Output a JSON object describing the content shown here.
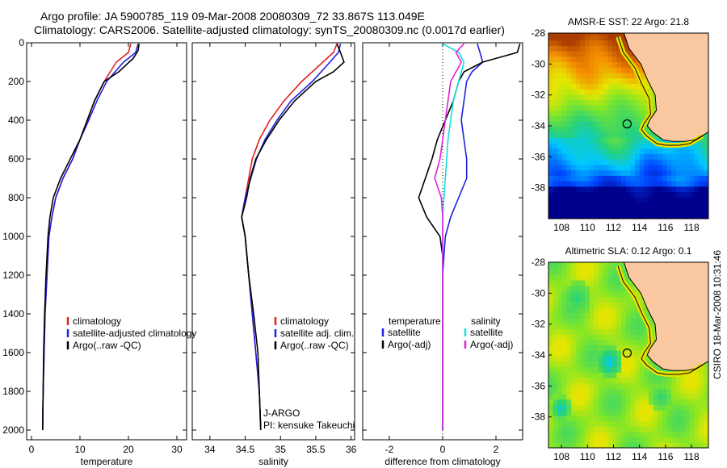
{
  "header": {
    "line1": "Argo profile: JA 5900785_119 09-Mar-2008 20080309_72 33.867S 113.049E",
    "line2": "Climatology: CARS2006. Satellite-adjusted climatology: synTS_20080309.nc (0.0017d earlier)"
  },
  "stamp": "CSIRO 18-Mar-2008 10:31:46",
  "colors": {
    "red": "#e02020",
    "blue": "#2020e0",
    "black": "#000000",
    "cyan": "#10e0e0",
    "magenta": "#e020e0"
  },
  "chart_data": [
    {
      "type": "line",
      "xlabel": "temperature",
      "xlim": [
        -1,
        32
      ],
      "ylim": [
        0,
        2050
      ],
      "y_reversed": true,
      "x_ticks": [
        0,
        10,
        20,
        30
      ],
      "y_ticks": [
        0,
        200,
        400,
        600,
        800,
        1000,
        1200,
        1400,
        1600,
        1800,
        2000
      ],
      "legend_entries": [
        "climatology",
        "satellite-adjusted climatology",
        "Argo(..raw -QC)"
      ],
      "series": [
        {
          "name": "climatology",
          "color": "red",
          "x": [
            20.5,
            20.0,
            17.5,
            15.0,
            13.0,
            11.5,
            10.0,
            8.5,
            6.5,
            5.0,
            4.2,
            3.6,
            3.2,
            2.8,
            2.6,
            2.4,
            2.3
          ],
          "y": [
            5,
            50,
            100,
            200,
            300,
            400,
            500,
            600,
            700,
            800,
            900,
            1000,
            1200,
            1400,
            1600,
            1800,
            2000
          ]
        },
        {
          "name": "satellite-adjusted climatology",
          "color": "blue",
          "x": [
            22.0,
            21.5,
            19.0,
            15.5,
            13.5,
            11.8,
            10.0,
            8.5,
            6.5,
            5.0,
            4.2,
            3.6,
            3.2,
            2.8,
            2.6,
            2.4,
            2.3
          ],
          "y": [
            5,
            50,
            100,
            200,
            300,
            400,
            500,
            600,
            700,
            800,
            900,
            1000,
            1200,
            1400,
            1600,
            1800,
            2000
          ]
        },
        {
          "name": "Argo(..raw -QC)",
          "color": "black",
          "x": [
            22.2,
            22.0,
            21.0,
            18.0,
            15.0,
            13.0,
            11.5,
            10.0,
            8.0,
            6.0,
            4.5,
            3.8,
            3.4,
            3.0,
            2.7,
            2.5,
            2.3
          ],
          "y": [
            5,
            40,
            80,
            150,
            200,
            300,
            400,
            500,
            600,
            700,
            800,
            900,
            1000,
            1200,
            1400,
            1600,
            2000
          ]
        }
      ]
    },
    {
      "type": "line",
      "xlabel": "salinity",
      "xlim": [
        33.75,
        36.05
      ],
      "ylim": [
        0,
        2050
      ],
      "y_reversed": true,
      "x_ticks": [
        34,
        34.5,
        35,
        35.5,
        36
      ],
      "legend_entries": [
        "climatology",
        "satellite adj. clim.",
        "Argo(..raw -QC)"
      ],
      "annotations": [
        "J-ARGO",
        "PI: kensuke Takeuchi"
      ],
      "series": [
        {
          "name": "climatology",
          "color": "red",
          "x": [
            35.8,
            35.75,
            35.6,
            35.3,
            35.05,
            34.85,
            34.7,
            34.6,
            34.55,
            34.5,
            34.45,
            34.5,
            34.55,
            34.6,
            34.65,
            34.7,
            34.72
          ],
          "y": [
            5,
            50,
            100,
            200,
            300,
            400,
            500,
            600,
            700,
            800,
            900,
            1000,
            1200,
            1400,
            1600,
            1800,
            2000
          ]
        },
        {
          "name": "satellite adj. clim.",
          "color": "blue",
          "x": [
            35.85,
            35.82,
            35.7,
            35.45,
            35.15,
            34.95,
            34.78,
            34.66,
            34.58,
            34.5,
            34.45,
            34.5,
            34.55,
            34.6,
            34.65,
            34.7,
            34.72
          ],
          "y": [
            5,
            50,
            100,
            200,
            300,
            400,
            500,
            600,
            700,
            800,
            900,
            1000,
            1200,
            1400,
            1600,
            1800,
            2000
          ]
        },
        {
          "name": "Argo(..raw -QC)",
          "color": "black",
          "x": [
            35.8,
            35.85,
            35.9,
            35.75,
            35.5,
            35.2,
            34.98,
            34.8,
            34.65,
            34.57,
            34.52,
            34.45,
            34.5,
            34.55,
            34.62,
            34.68,
            34.72
          ],
          "y": [
            5,
            50,
            100,
            150,
            200,
            300,
            400,
            500,
            600,
            700,
            800,
            900,
            1000,
            1200,
            1400,
            1600,
            2000
          ]
        }
      ]
    },
    {
      "type": "line",
      "xlabel": "difference from climatology",
      "xlim": [
        -3,
        3
      ],
      "ylim": [
        0,
        2050
      ],
      "y_reversed": true,
      "x_ticks": [
        -2,
        0,
        2
      ],
      "legend_entries": [
        "temperature",
        "satellite",
        "Argo(-adj)",
        "salinity",
        "satellite",
        "Argo(-adj)"
      ],
      "series": [
        {
          "name": "satellite",
          "group": "temperature",
          "color": "blue",
          "x": [
            1.3,
            1.4,
            1.5,
            1.1,
            0.9,
            0.8,
            0.7,
            0.8,
            0.9,
            0.9,
            0.6,
            0.3,
            0.1,
            0,
            0,
            0,
            0
          ],
          "y": [
            5,
            50,
            100,
            150,
            200,
            300,
            400,
            500,
            600,
            700,
            800,
            900,
            1000,
            1200,
            1400,
            1600,
            2000
          ]
        },
        {
          "name": "Argo(-adj)",
          "group": "temperature",
          "color": "black",
          "x": [
            2.9,
            2.8,
            1.5,
            0.8,
            0.6,
            0.4,
            0.1,
            -0.2,
            -0.4,
            -0.9,
            -0.6,
            -0.1,
            0,
            0,
            0,
            0,
            0
          ],
          "y": [
            5,
            50,
            100,
            150,
            200,
            300,
            400,
            500,
            600,
            800,
            900,
            1000,
            1100,
            1200,
            1400,
            1600,
            2000
          ]
        },
        {
          "name": "satellite",
          "group": "salinity",
          "color": "cyan",
          "x": [
            0,
            0.6,
            0.8,
            0.6,
            0.4,
            0.3,
            0.2,
            0.15,
            0.1,
            0.05,
            0,
            0,
            0,
            0,
            0,
            0
          ],
          "y": [
            5,
            50,
            100,
            200,
            300,
            400,
            500,
            600,
            700,
            800,
            900,
            1000,
            1200,
            1400,
            1600,
            2000
          ]
        },
        {
          "name": "Argo(-adj)",
          "group": "salinity",
          "color": "magenta",
          "x": [
            0.8,
            0.5,
            0.7,
            0.3,
            0.2,
            0.1,
            0,
            -0.1,
            -0.3,
            -0.05,
            0,
            0,
            0,
            0,
            0
          ],
          "y": [
            5,
            50,
            100,
            200,
            300,
            400,
            500,
            600,
            700,
            800,
            900,
            1000,
            1200,
            1600,
            2000
          ]
        }
      ]
    },
    {
      "type": "heatmap",
      "title": "AMSR-E SST: 22 Argo: 21.8",
      "xlim": [
        107,
        119.3
      ],
      "ylim": [
        -40,
        -28
      ],
      "x_ticks": [
        108,
        110,
        112,
        114,
        116,
        118
      ],
      "y_ticks": [
        -28,
        -30,
        -32,
        -34,
        -36,
        -38
      ],
      "marker": {
        "lon": 113.049,
        "lat": -33.867
      }
    },
    {
      "type": "heatmap",
      "title": "Altimetric SLA: 0.12 Argo: 0.1",
      "xlim": [
        107,
        119.3
      ],
      "ylim": [
        -40,
        -28
      ],
      "x_ticks": [
        108,
        110,
        112,
        114,
        116,
        118
      ],
      "y_ticks": [
        -28,
        -30,
        -32,
        -34,
        -36,
        -38
      ],
      "marker": {
        "lon": 113.049,
        "lat": -33.867
      }
    }
  ]
}
